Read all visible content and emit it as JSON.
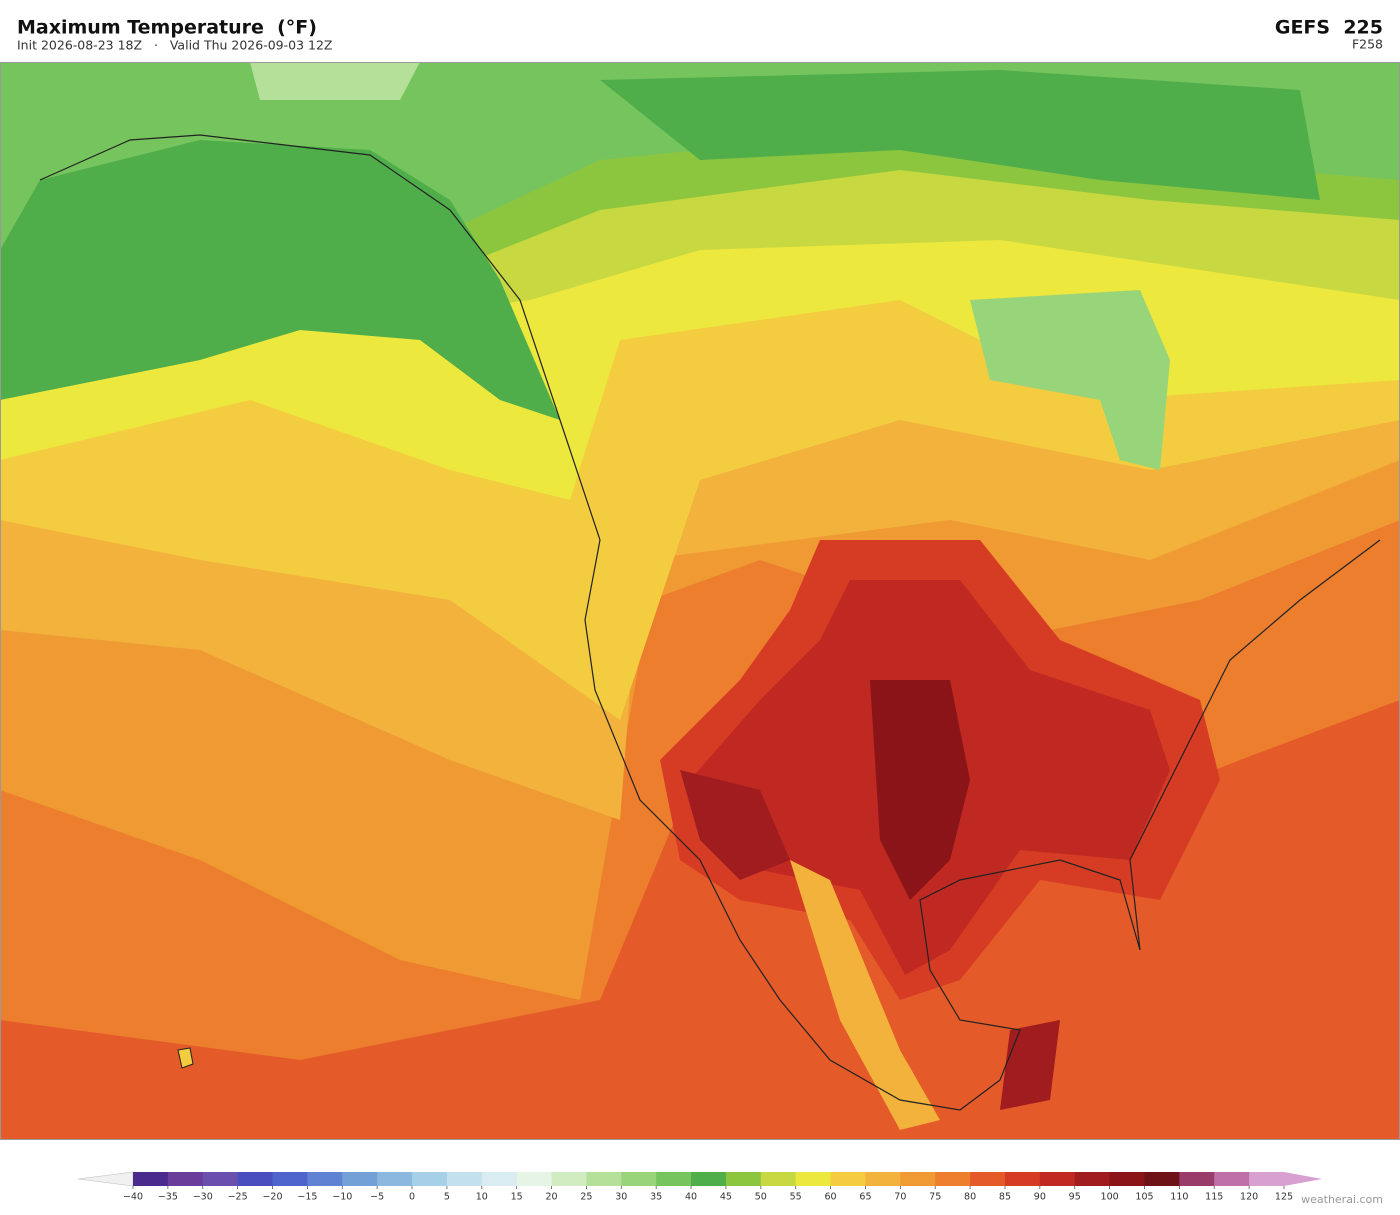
{
  "header": {
    "title": "Maximum Temperature  (°F)",
    "subtitle": "Init 2026-08-23 18Z   ·   Valid Thu 2026-09-03 12Z",
    "model": "GEFS  225",
    "forecast_hour": "F258"
  },
  "colorbar": {
    "ticks": [
      {
        "value": -40,
        "label": "−40"
      },
      {
        "value": -35,
        "label": "−35"
      },
      {
        "value": -30,
        "label": "−30"
      },
      {
        "value": -25,
        "label": "−25"
      },
      {
        "value": -20,
        "label": "−20"
      },
      {
        "value": -15,
        "label": "−15"
      },
      {
        "value": -10,
        "label": "−10"
      },
      {
        "value": -5,
        "label": "−5"
      },
      0,
      5,
      10,
      15,
      20,
      25,
      30,
      35,
      40,
      45,
      50,
      55,
      60,
      65,
      70,
      75,
      80,
      85,
      90,
      95,
      100,
      105,
      110,
      115,
      120,
      125
    ],
    "colors": [
      "#4b2a8e",
      "#6a3d9a",
      "#6b4fae",
      "#4a4fc0",
      "#4f63cc",
      "#5f82d2",
      "#74a0d8",
      "#8cb8e0",
      "#a6cfe8",
      "#c2e0ee",
      "#d8ecf2",
      "#e6f4e6",
      "#d0ecc0",
      "#b4e09a",
      "#98d47a",
      "#76c45e",
      "#4fae4a",
      "#8cc63e",
      "#c8d840",
      "#ece83e",
      "#f4cc40",
      "#f2b23c",
      "#f09a34",
      "#ec7e2e",
      "#e45a28",
      "#d63c24",
      "#c02822",
      "#a01c1e",
      "#8a1418",
      "#6e1218",
      "#9a3c6a",
      "#c070a8",
      "#d8a0d0"
    ],
    "under_color": "#f0f0f0",
    "over_color": "#d8a0d0"
  },
  "footer": {
    "credit": "weatherai.com"
  }
}
